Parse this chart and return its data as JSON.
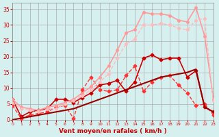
{
  "title": "",
  "xlabel": "Vent moyen/en rafales ( km/h )",
  "ylabel": "",
  "xlim": [
    0,
    23
  ],
  "ylim": [
    0,
    37
  ],
  "xticks": [
    0,
    1,
    2,
    3,
    4,
    5,
    6,
    7,
    8,
    9,
    10,
    11,
    12,
    13,
    14,
    15,
    16,
    17,
    18,
    19,
    20,
    21,
    22,
    23
  ],
  "yticks": [
    0,
    5,
    10,
    15,
    20,
    25,
    30,
    35
  ],
  "bg_color": "#d6f0f0",
  "grid_color": "#aaaaaa",
  "series": [
    {
      "x": [
        0,
        1,
        2,
        3,
        4,
        5,
        6,
        7,
        8,
        9,
        10,
        11,
        12,
        13,
        14,
        15,
        16,
        17,
        18,
        19,
        20,
        21,
        22,
        23
      ],
      "y": [
        6.5,
        1.0,
        2.5,
        3.0,
        3.5,
        6.5,
        6.5,
        5.5,
        7.0,
        8.5,
        11.0,
        11.5,
        12.5,
        9.0,
        12.0,
        19.5,
        20.5,
        19.0,
        19.5,
        19.5,
        13.5,
        15.5,
        4.0,
        2.5
      ],
      "color": "#cc0000",
      "lw": 1.2,
      "marker": "D",
      "ms": 2.5,
      "ls": "-"
    },
    {
      "x": [
        0,
        1,
        2,
        3,
        4,
        5,
        6,
        7,
        8,
        9,
        10,
        11,
        12,
        13,
        14,
        15,
        16,
        17,
        18,
        19,
        20,
        21,
        22,
        23
      ],
      "y": [
        4.5,
        0.5,
        1.5,
        2.0,
        2.5,
        4.0,
        4.5,
        0.5,
        9.5,
        13.5,
        9.5,
        9.0,
        9.5,
        14.0,
        17.0,
        9.0,
        12.0,
        13.5,
        14.0,
        11.0,
        8.5,
        4.5,
        5.0,
        1.5
      ],
      "color": "#ff3333",
      "lw": 1.0,
      "marker": "D",
      "ms": 2.5,
      "ls": "--"
    },
    {
      "x": [
        0,
        1,
        2,
        3,
        4,
        5,
        6,
        7,
        8,
        9,
        10,
        11,
        12,
        13,
        14,
        15,
        16,
        17,
        18,
        19,
        20,
        21,
        22,
        23
      ],
      "y": [
        6.5,
        4.0,
        3.5,
        3.0,
        4.0,
        4.5,
        5.5,
        6.5,
        8.5,
        10.5,
        13.5,
        17.0,
        22.0,
        27.5,
        28.5,
        34.0,
        33.5,
        33.5,
        33.0,
        31.5,
        31.0,
        35.5,
        26.5,
        6.5
      ],
      "color": "#ff9999",
      "lw": 1.2,
      "marker": "o",
      "ms": 2.5,
      "ls": "-"
    },
    {
      "x": [
        0,
        1,
        2,
        3,
        4,
        5,
        6,
        7,
        8,
        9,
        10,
        11,
        12,
        13,
        14,
        15,
        16,
        17,
        18,
        19,
        20,
        21,
        22,
        23
      ],
      "y": [
        5.5,
        3.5,
        3.0,
        2.5,
        3.5,
        3.5,
        5.0,
        6.0,
        7.5,
        9.5,
        12.0,
        14.5,
        19.5,
        24.0,
        25.5,
        30.0,
        30.0,
        30.5,
        30.0,
        29.0,
        28.5,
        31.5,
        32.0,
        6.0
      ],
      "color": "#ffbbbb",
      "lw": 1.0,
      "marker": "o",
      "ms": 2.5,
      "ls": "--"
    },
    {
      "x": [
        0,
        1,
        2,
        3,
        4,
        5,
        6,
        7,
        8,
        9,
        10,
        11,
        12,
        13,
        14,
        15,
        16,
        17,
        18,
        19,
        20,
        21,
        22,
        23
      ],
      "y": [
        0.0,
        0.5,
        1.0,
        1.5,
        2.0,
        2.5,
        3.0,
        3.5,
        4.5,
        5.5,
        6.5,
        7.5,
        8.5,
        9.5,
        10.5,
        11.5,
        12.5,
        13.5,
        14.0,
        14.5,
        15.0,
        16.0,
        4.0,
        2.5
      ],
      "color": "#990000",
      "lw": 1.5,
      "marker": null,
      "ms": 0,
      "ls": "-"
    }
  ]
}
